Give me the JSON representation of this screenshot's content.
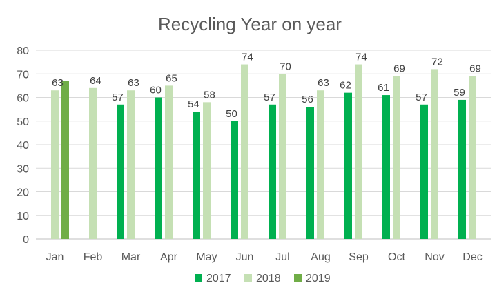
{
  "chart_data": {
    "type": "bar",
    "title": "Recycling Year on year",
    "xlabel": "",
    "ylabel": "",
    "ylim": [
      0,
      80
    ],
    "yticks": [
      0,
      10,
      20,
      30,
      40,
      50,
      60,
      70,
      80
    ],
    "grid": true,
    "legend_position": "bottom",
    "categories": [
      "Jan",
      "Feb",
      "Mar",
      "Apr",
      "May",
      "Jun",
      "Jul",
      "Aug",
      "Sep",
      "Oct",
      "Nov",
      "Dec"
    ],
    "series": [
      {
        "name": "2017",
        "color": "#00b050",
        "values": [
          null,
          null,
          57,
          60,
          54,
          50,
          57,
          56,
          62,
          61,
          57,
          59
        ],
        "show_labels": true
      },
      {
        "name": "2018",
        "color": "#c5e0b4",
        "values": [
          63,
          64,
          63,
          65,
          58,
          74,
          70,
          63,
          74,
          69,
          72,
          69
        ],
        "show_labels": true
      },
      {
        "name": "2019",
        "color": "#70ad47",
        "values": [
          67,
          null,
          null,
          null,
          null,
          null,
          null,
          null,
          null,
          null,
          null,
          null
        ],
        "show_labels": false
      }
    ]
  }
}
